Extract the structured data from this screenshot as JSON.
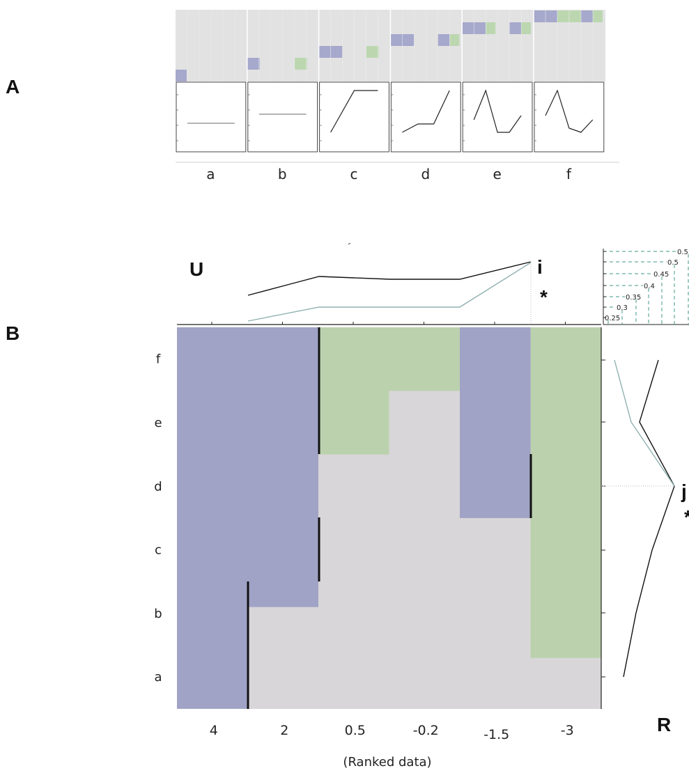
{
  "panel_labels": {
    "A": "A",
    "B": "B",
    "U": "U",
    "R": "R"
  },
  "markers": {
    "i": "i",
    "j": "j",
    "star": "*"
  },
  "panel_a": {
    "columns": [
      "a",
      "b",
      "c",
      "d",
      "e",
      "f"
    ],
    "colors": {
      "blue": "#a6a8cc",
      "green": "#bcd7b0",
      "grey": "#e2e2e2"
    },
    "profiles": [
      [
        0,
        0
      ],
      [
        0,
        0
      ],
      [
        0,
        1,
        1
      ],
      [
        0,
        0.2,
        0.2,
        1
      ],
      [
        0.3,
        1,
        0,
        0,
        0.4
      ],
      [
        0.4,
        1,
        0.1,
        0,
        0.3
      ]
    ]
  },
  "panel_b": {
    "row_labels": [
      "f",
      "e",
      "d",
      "c",
      "b",
      "a"
    ],
    "x_tick_labels": [
      "4",
      "2",
      "0.5",
      "-0.2",
      "-1.5",
      "-3"
    ],
    "x_axis_label": "(Ranked data)",
    "scale_labels": [
      "0.25",
      "0.3",
      "0.35",
      "0.4",
      "0.45",
      "0.5",
      "0.5"
    ],
    "colors": {
      "blue": "#a0a3c5",
      "green": "#bbd1ae",
      "grey": "#d8d6d8",
      "teal": "#8fb1b0"
    },
    "column_bars": [
      {
        "fill_from_top": 6.0,
        "color": "blue",
        "divider_rows": [
          0,
          1
        ]
      },
      {
        "fill_from_top": 4.4,
        "color": "blue",
        "divider_rows": [
          1,
          2
        ]
      },
      {
        "fill_from_top": 2.0,
        "color": "green",
        "divider_rows": [
          3,
          4
        ]
      },
      {
        "fill_from_top": 1.0,
        "color": "green",
        "divider_rows": []
      },
      {
        "fill_from_top": 3.0,
        "color": "blue",
        "divider_rows": [
          2,
          3
        ]
      },
      {
        "fill_from_top": 5.2,
        "color": "green",
        "divider_rows": []
      }
    ],
    "u_curve_black": [
      0.42,
      0.6,
      0.56,
      0.56,
      1.0
    ],
    "u_curve_teal": [
      0.0,
      0.22,
      0.22,
      0.22,
      1.0
    ],
    "r_curve_black": [
      0.25,
      0.05,
      1.0,
      0.62,
      0.28,
      0.05
    ],
    "r_curve_teal": [
      0.0,
      0.3,
      1.0
    ]
  }
}
